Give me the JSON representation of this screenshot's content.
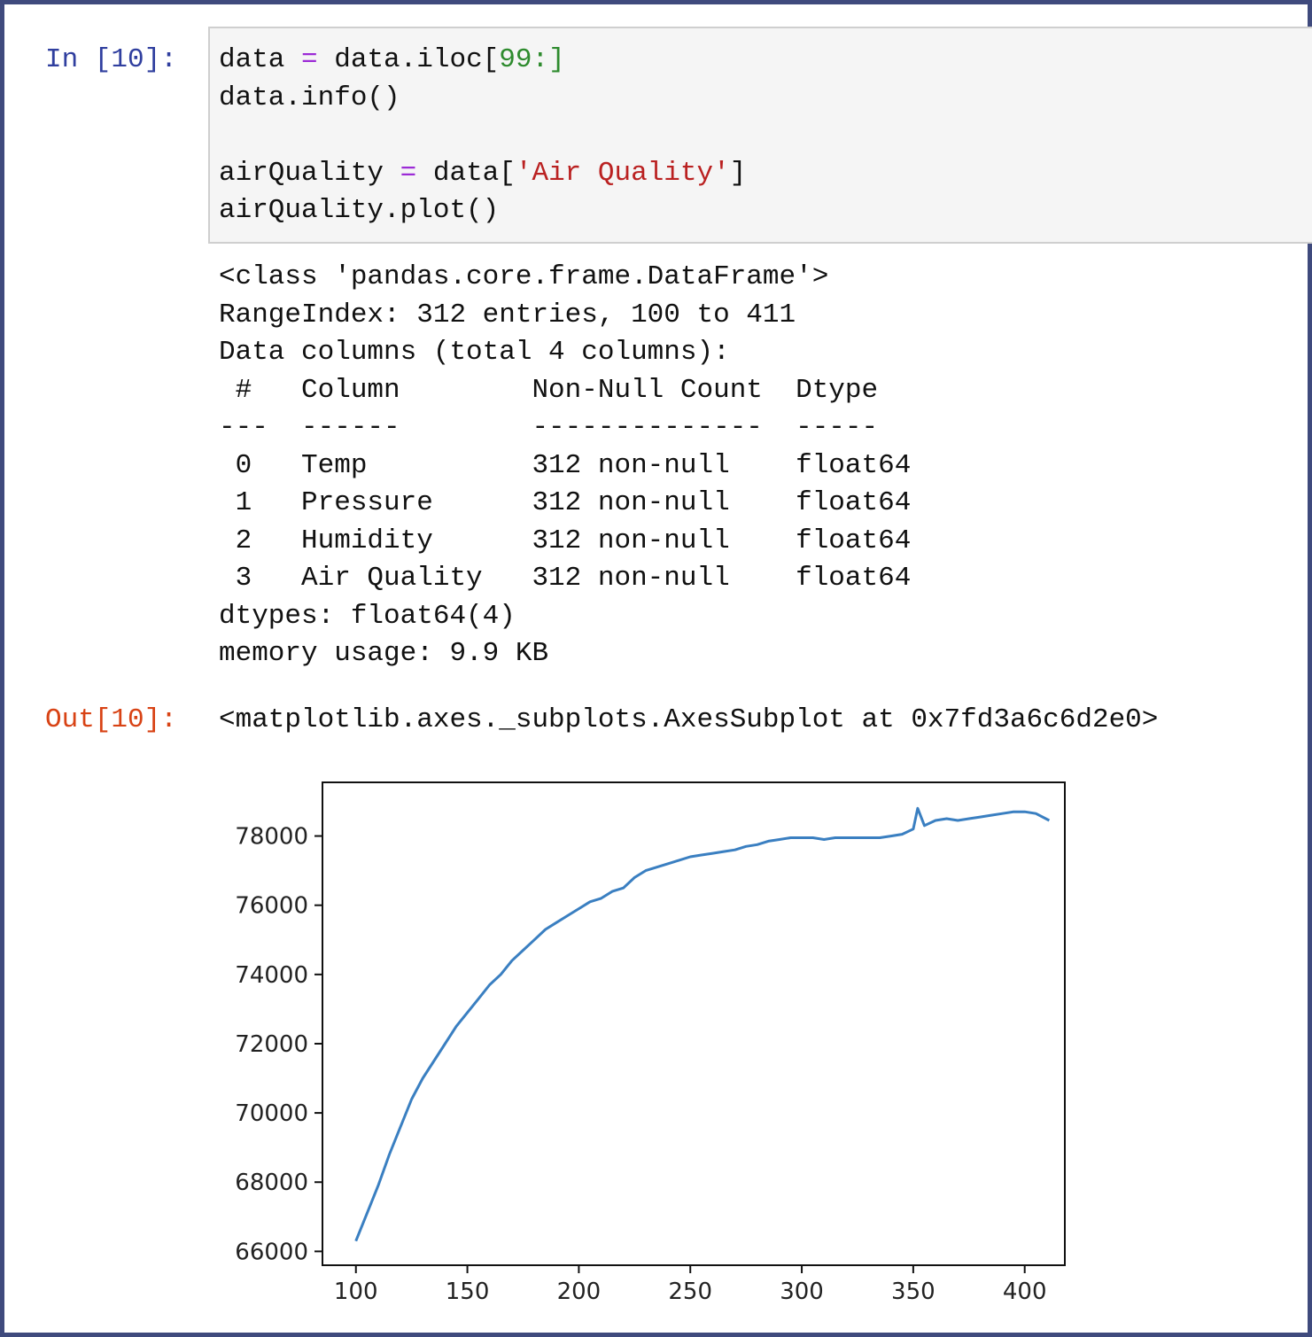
{
  "input_prompt": "In [10]:",
  "output_prompt": "Out[10]:",
  "code": {
    "line1": {
      "var": "data",
      "op": "=",
      "call": "data.iloc[",
      "slice": "99:",
      "close": "]"
    },
    "line2": "data.info()",
    "line4": {
      "var": "airQuality",
      "op": "=",
      "call": "data[",
      "str": "'Air Quality'",
      "close": "]"
    },
    "line5": "airQuality.plot()"
  },
  "info_output": {
    "class_line": "<class 'pandas.core.frame.DataFrame'>",
    "range_line": "RangeIndex: 312 entries, 100 to 411",
    "columns_line": "Data columns (total 4 columns):",
    "header": " #   Column        Non-Null Count  Dtype  ",
    "divider": "---  ------        --------------  -----  ",
    "rows": [
      " 0   Temp          312 non-null    float64",
      " 1   Pressure      312 non-null    float64",
      " 2   Humidity      312 non-null    float64",
      " 3   Air Quality   312 non-null    float64"
    ],
    "dtypes_line": "dtypes: float64(4)",
    "memory_line": "memory usage: 9.9 KB"
  },
  "out_repr": "<matplotlib.axes._subplots.AxesSubplot at 0x7fd3a6c6d2e0>",
  "colors": {
    "line": "#3a7fc1",
    "prompt_in": "#303f9f",
    "prompt_out": "#d84315",
    "border": "#3f4a7d"
  },
  "chart_data": {
    "type": "line",
    "title": "",
    "xlabel": "",
    "ylabel": "",
    "xlim": [
      85,
      418
    ],
    "ylim": [
      65600,
      79550
    ],
    "x_ticks": [
      100,
      150,
      200,
      250,
      300,
      350,
      400
    ],
    "x_tick_labels": [
      "100",
      "150",
      "200",
      "250",
      "300",
      "350",
      "400"
    ],
    "y_ticks": [
      66000,
      68000,
      70000,
      72000,
      74000,
      76000,
      78000
    ],
    "y_tick_labels": [
      "66000",
      "68000",
      "70000",
      "72000",
      "74000",
      "76000",
      "78000"
    ],
    "grid": false,
    "series": [
      {
        "x": [
          100,
          105,
          110,
          115,
          120,
          125,
          130,
          135,
          140,
          145,
          150,
          155,
          160,
          165,
          170,
          175,
          180,
          185,
          190,
          195,
          200,
          205,
          210,
          215,
          220,
          225,
          230,
          235,
          240,
          245,
          250,
          255,
          260,
          265,
          270,
          275,
          280,
          285,
          290,
          295,
          300,
          305,
          310,
          315,
          320,
          325,
          330,
          335,
          340,
          345,
          350,
          352,
          355,
          360,
          365,
          370,
          375,
          380,
          385,
          390,
          395,
          400,
          405,
          411
        ],
        "values": [
          66300,
          67100,
          67900,
          68800,
          69600,
          70400,
          71000,
          71500,
          72000,
          72500,
          72900,
          73300,
          73700,
          74000,
          74400,
          74700,
          75000,
          75300,
          75500,
          75700,
          75900,
          76100,
          76200,
          76400,
          76500,
          76800,
          77000,
          77100,
          77200,
          77300,
          77400,
          77450,
          77500,
          77550,
          77600,
          77700,
          77750,
          77850,
          77900,
          77950,
          77950,
          77950,
          77900,
          77950,
          77950,
          77950,
          77950,
          77950,
          78000,
          78050,
          78200,
          78800,
          78300,
          78450,
          78500,
          78450,
          78500,
          78550,
          78600,
          78650,
          78700,
          78700,
          78650,
          78450
        ]
      }
    ]
  }
}
